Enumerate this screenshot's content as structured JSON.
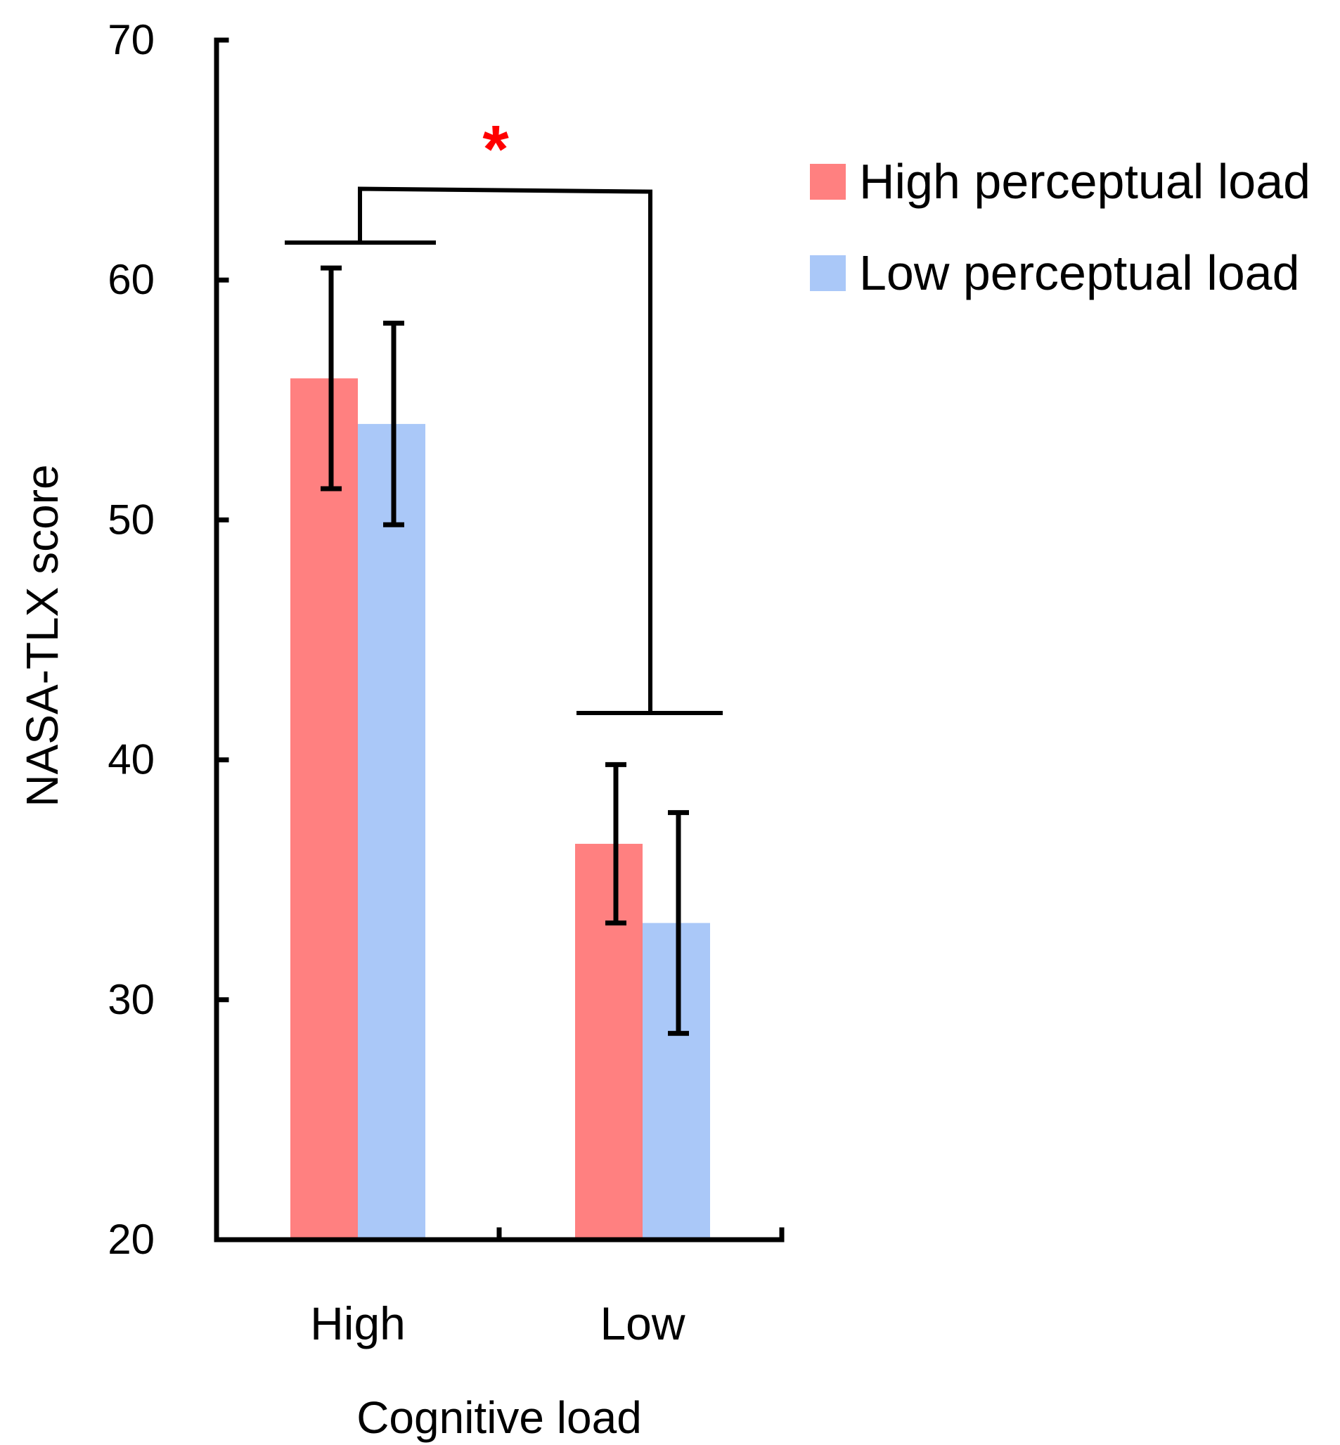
{
  "chart_data": {
    "type": "bar",
    "categories": [
      "High",
      "Low"
    ],
    "series": [
      {
        "name": "High perceptual load",
        "color": "#ff8080",
        "values": [
          55.9,
          36.5
        ],
        "errors": [
          4.6,
          3.3
        ]
      },
      {
        "name": "Low perceptual load",
        "color": "#aac8f8",
        "values": [
          54.0,
          33.2
        ],
        "errors": [
          4.2,
          4.6
        ]
      }
    ],
    "xlabel": "Cognitive load",
    "ylabel": "NASA-TLX score",
    "ylim": [
      20,
      70
    ],
    "yticks": [
      20,
      30,
      40,
      50,
      60,
      70
    ],
    "grid": false,
    "legend": {
      "position": "top-right"
    },
    "annotations": [
      {
        "type": "significance",
        "label": "*",
        "color": "#ff0000",
        "between": [
          "High",
          "Low"
        ],
        "y": 63.8
      }
    ]
  }
}
